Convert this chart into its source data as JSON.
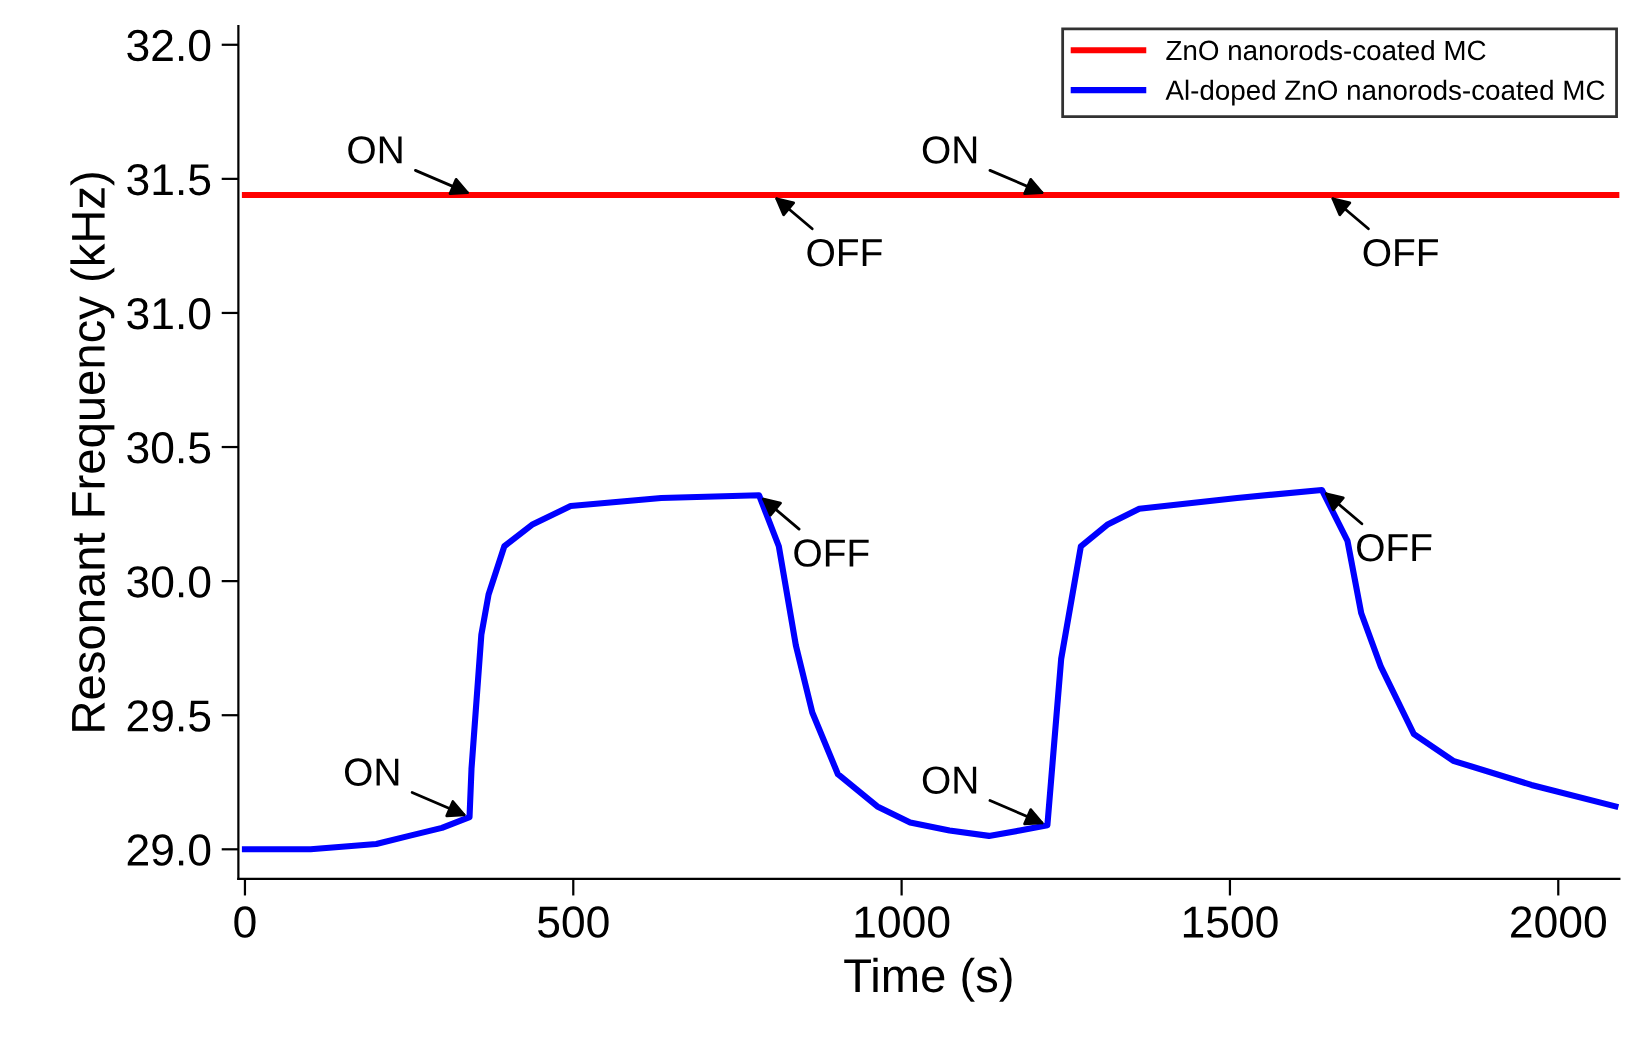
{
  "chart_data": {
    "type": "line",
    "xlabel": "Time (s)",
    "ylabel": "Resonant Frequency (kHz)",
    "xlim": [
      -10,
      2093
    ],
    "ylim": [
      28.89,
      32.07
    ],
    "xticks": [
      0,
      500,
      1000,
      1500,
      2000
    ],
    "yticks": [
      {
        "value": 29.0,
        "label": "29.0"
      },
      {
        "value": 29.5,
        "label": "29.5"
      },
      {
        "value": 30.0,
        "label": "30.0"
      },
      {
        "value": 30.5,
        "label": "30.5"
      },
      {
        "value": 31.0,
        "label": "31.0"
      },
      {
        "value": 31.5,
        "label": "31.5"
      },
      {
        "value": 32.0,
        "label": "32.0"
      }
    ],
    "grid": false,
    "legend": "top right",
    "marker": "none",
    "line_style": "solid",
    "series": [
      {
        "name": "ZnO nanorods-coated MC",
        "color": "#ff0000",
        "x": [
          0,
          500,
          1000,
          1500,
          2093
        ],
        "values": [
          31.44,
          31.44,
          31.44,
          31.44,
          31.44
        ]
      },
      {
        "name": "Al-doped ZnO nanorods-coated MC",
        "color": "#0000ff",
        "x": [
          0,
          100,
          200,
          250,
          300,
          342,
          345,
          360,
          371,
          395,
          437,
          496,
          634,
          783,
          813,
          839,
          864,
          903,
          963,
          1013,
          1073,
          1133,
          1180,
          1222,
          1243,
          1273,
          1313,
          1362,
          1511,
          1640,
          1679,
          1700,
          1730,
          1780,
          1840,
          1959,
          2087
        ],
        "values": [
          29.0,
          29.0,
          29.02,
          29.05,
          29.08,
          29.12,
          29.3,
          29.8,
          29.95,
          30.13,
          30.21,
          30.28,
          30.31,
          30.32,
          30.13,
          29.76,
          29.51,
          29.28,
          29.16,
          29.1,
          29.07,
          29.05,
          29.07,
          29.09,
          29.71,
          30.13,
          30.21,
          30.27,
          30.31,
          30.34,
          30.15,
          29.88,
          29.68,
          29.43,
          29.33,
          29.24,
          29.16
        ]
      }
    ],
    "annotations": [
      {
        "text": "ON",
        "x": 347,
        "y": 31.44
      },
      {
        "text": "OFF",
        "x": 803,
        "y": 31.44
      },
      {
        "text": "ON",
        "x": 1222,
        "y": 31.44
      },
      {
        "text": "OFF",
        "x": 1650,
        "y": 31.44
      },
      {
        "text": "ON",
        "x": 342,
        "y": 29.12
      },
      {
        "text": "OFF",
        "x": 783,
        "y": 30.32
      },
      {
        "text": "ON",
        "x": 1222,
        "y": 29.09
      },
      {
        "text": "OFF",
        "x": 1640,
        "y": 30.34
      }
    ]
  }
}
